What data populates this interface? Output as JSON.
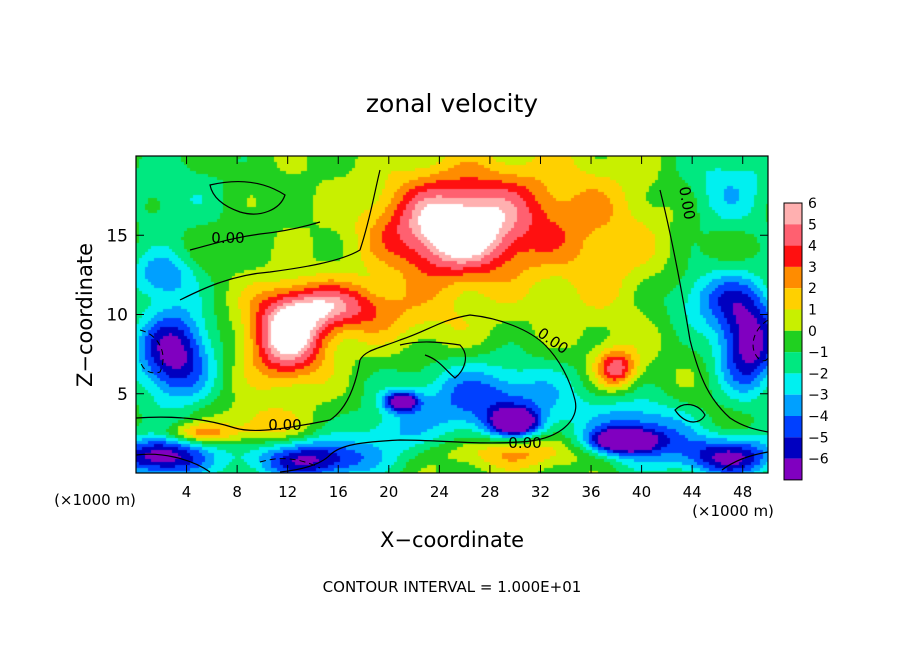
{
  "chart_data": {
    "type": "heatmap",
    "title": "zonal velocity",
    "xlabel": "X−coordinate",
    "ylabel": "Z−coordinate",
    "x_unit_left": "(×1000 m)",
    "x_unit_right": "(×1000 m)",
    "xlim": [
      0,
      50
    ],
    "ylim": [
      0,
      20
    ],
    "x_ticks": [
      4,
      8,
      12,
      16,
      20,
      24,
      28,
      32,
      36,
      40,
      44,
      48
    ],
    "y_ticks": [
      5,
      10,
      15
    ],
    "colorbar": {
      "levels": [
        6,
        5,
        4,
        3,
        2,
        1,
        0,
        -1,
        -2,
        -3,
        -4,
        -5,
        -6
      ],
      "labels": [
        "6",
        "5",
        "4",
        "3",
        "2",
        "1",
        "0",
        "−1",
        "−2",
        "−3",
        "−4",
        "−5",
        "−6"
      ],
      "colors": [
        "#ffb0b0",
        "#ff6070",
        "#ff1010",
        "#ff8c00",
        "#ffd000",
        "#c8f000",
        "#20d020",
        "#00e880",
        "#00f0f0",
        "#00a0ff",
        "#0040ff",
        "#0000c0",
        "#8000c0"
      ]
    },
    "contour_labels": [
      "0.00",
      "0.00",
      "0.00",
      "0.00",
      "0.00"
    ],
    "footer": "CONTOUR INTERVAL = 1.000E+01",
    "field_features": [
      {
        "x": 25,
        "z": 15.2,
        "value": 6.2,
        "rx": 5.5,
        "rz": 3.0
      },
      {
        "x": 12,
        "z": 8.5,
        "value": 6.8,
        "rx": 3.0,
        "rz": 2.6
      },
      {
        "x": 15.5,
        "z": 10.5,
        "value": 4.5,
        "rx": 4.5,
        "rz": 1.5
      },
      {
        "x": 38,
        "z": 6.6,
        "value": 5.0,
        "rx": 1.6,
        "rz": 1.2
      },
      {
        "x": 29,
        "z": 16.5,
        "value": 2.5,
        "rx": 8.0,
        "rz": 3.5
      },
      {
        "x": 37,
        "z": 14,
        "value": 1.5,
        "rx": 5.0,
        "rz": 5.0
      },
      {
        "x": 22,
        "z": 9.5,
        "value": 1.2,
        "rx": 6.0,
        "rz": 2.0
      },
      {
        "x": 28,
        "z": 4.5,
        "value": -4.5,
        "rx": 7.0,
        "rz": 2.5
      },
      {
        "x": 40,
        "z": 2.5,
        "value": -4.5,
        "rx": 4.0,
        "rz": 2.0
      },
      {
        "x": 3,
        "z": 7.5,
        "value": -6.5,
        "rx": 3.0,
        "rz": 3.0
      },
      {
        "x": 48.5,
        "z": 8,
        "value": -6.5,
        "rx": 2.5,
        "rz": 3.0
      },
      {
        "x": 2,
        "z": 1.0,
        "value": -6.5,
        "rx": 4.0,
        "rz": 1.3
      },
      {
        "x": 14,
        "z": 0.8,
        "value": -6.0,
        "rx": 5.0,
        "rz": 1.3
      },
      {
        "x": 47,
        "z": 1.0,
        "value": -6.0,
        "rx": 4.0,
        "rz": 1.3
      },
      {
        "x": 30,
        "z": 3.2,
        "value": -6.5,
        "rx": 1.8,
        "rz": 0.8
      },
      {
        "x": 21,
        "z": 4.5,
        "value": -6.5,
        "rx": 1.3,
        "rz": 0.6
      },
      {
        "x": 38.5,
        "z": 2.0,
        "value": -6.5,
        "rx": 2.5,
        "rz": 0.7
      },
      {
        "x": 2,
        "z": 12.5,
        "value": -3.5,
        "rx": 2.5,
        "rz": 1.5
      },
      {
        "x": 46,
        "z": 11,
        "value": -3.5,
        "rx": 4.0,
        "rz": 2.0
      },
      {
        "x": 3,
        "z": 17.5,
        "value": -1.5,
        "rx": 5.0,
        "rz": 3.0
      },
      {
        "x": 47,
        "z": 18,
        "value": -2.5,
        "rx": 4.0,
        "rz": 3.0
      },
      {
        "x": 20,
        "z": 2.5,
        "value": -2.0,
        "rx": 3.0,
        "rz": 1.5
      },
      {
        "x": 10,
        "z": 3.0,
        "value": 2.0,
        "rx": 3.0,
        "rz": 1.2
      },
      {
        "x": 30,
        "z": 1.3,
        "value": 3.0,
        "rx": 5.0,
        "rz": 1.0
      },
      {
        "x": 5,
        "z": 2.5,
        "value": 3.0,
        "rx": 3.0,
        "rz": 0.6
      }
    ]
  }
}
